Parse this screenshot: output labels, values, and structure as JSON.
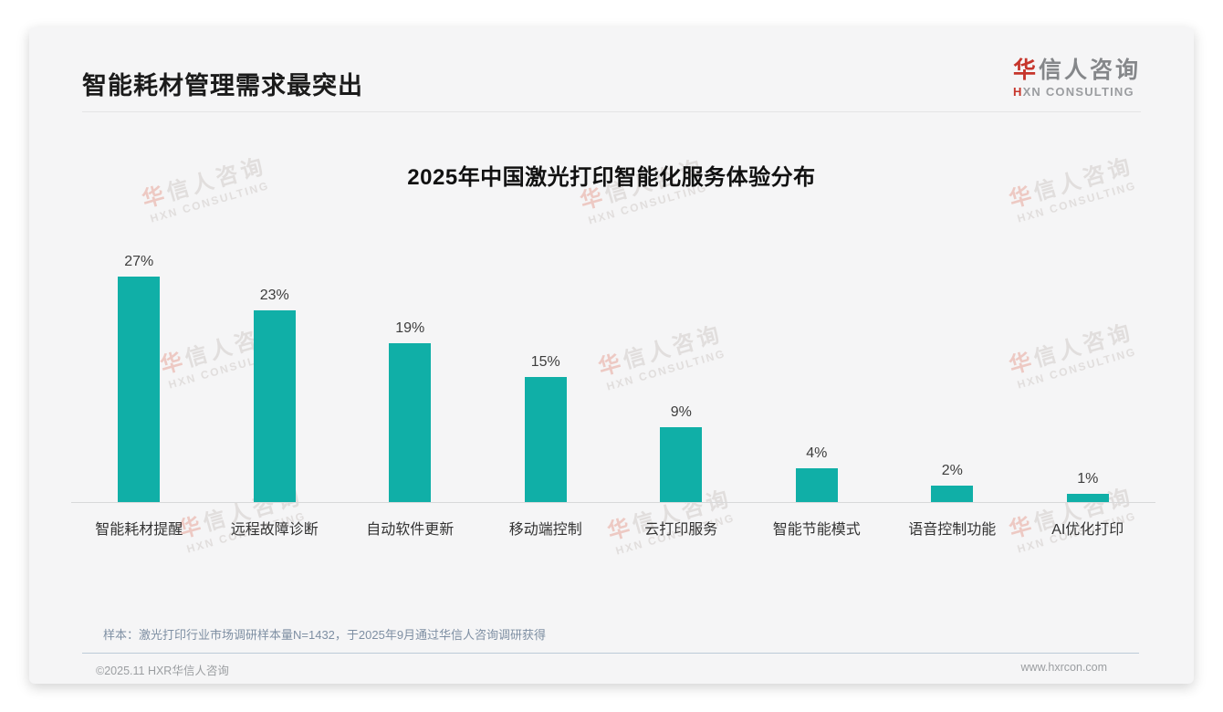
{
  "page": {
    "title": "智能耗材管理需求最突出",
    "sample_note": "样本：激光打印行业市场调研样本量N=1432，于2025年9月通过华信人咨询调研获得",
    "footer_left": "©2025.11 HXR华信人咨询",
    "footer_right": "www.hxrcon.com"
  },
  "logo": {
    "cn_first": "华",
    "cn_rest": "信人咨询",
    "en_first": "H",
    "en_rest": "XN CONSULTING"
  },
  "watermark": {
    "cn_first": "华",
    "cn_rest": "信人咨询",
    "en": "HXN CONSULTING"
  },
  "colors": {
    "bar": "#10afa7",
    "logo_red": "#c6352b"
  },
  "chart_data": {
    "type": "bar",
    "title": "2025年中国激光打印智能化服务体验分布",
    "categories": [
      "智能耗材提醒",
      "远程故障诊断",
      "自动软件更新",
      "移动端控制",
      "云打印服务",
      "智能节能模式",
      "语音控制功能",
      "AI优化打印"
    ],
    "values": [
      27,
      23,
      19,
      15,
      9,
      4,
      2,
      1
    ],
    "unit": "%",
    "xlabel": "",
    "ylabel": "",
    "ylim": [
      0,
      30
    ],
    "grid": false,
    "legend": false,
    "data_labels": true,
    "bar_color": "#10afa7"
  }
}
